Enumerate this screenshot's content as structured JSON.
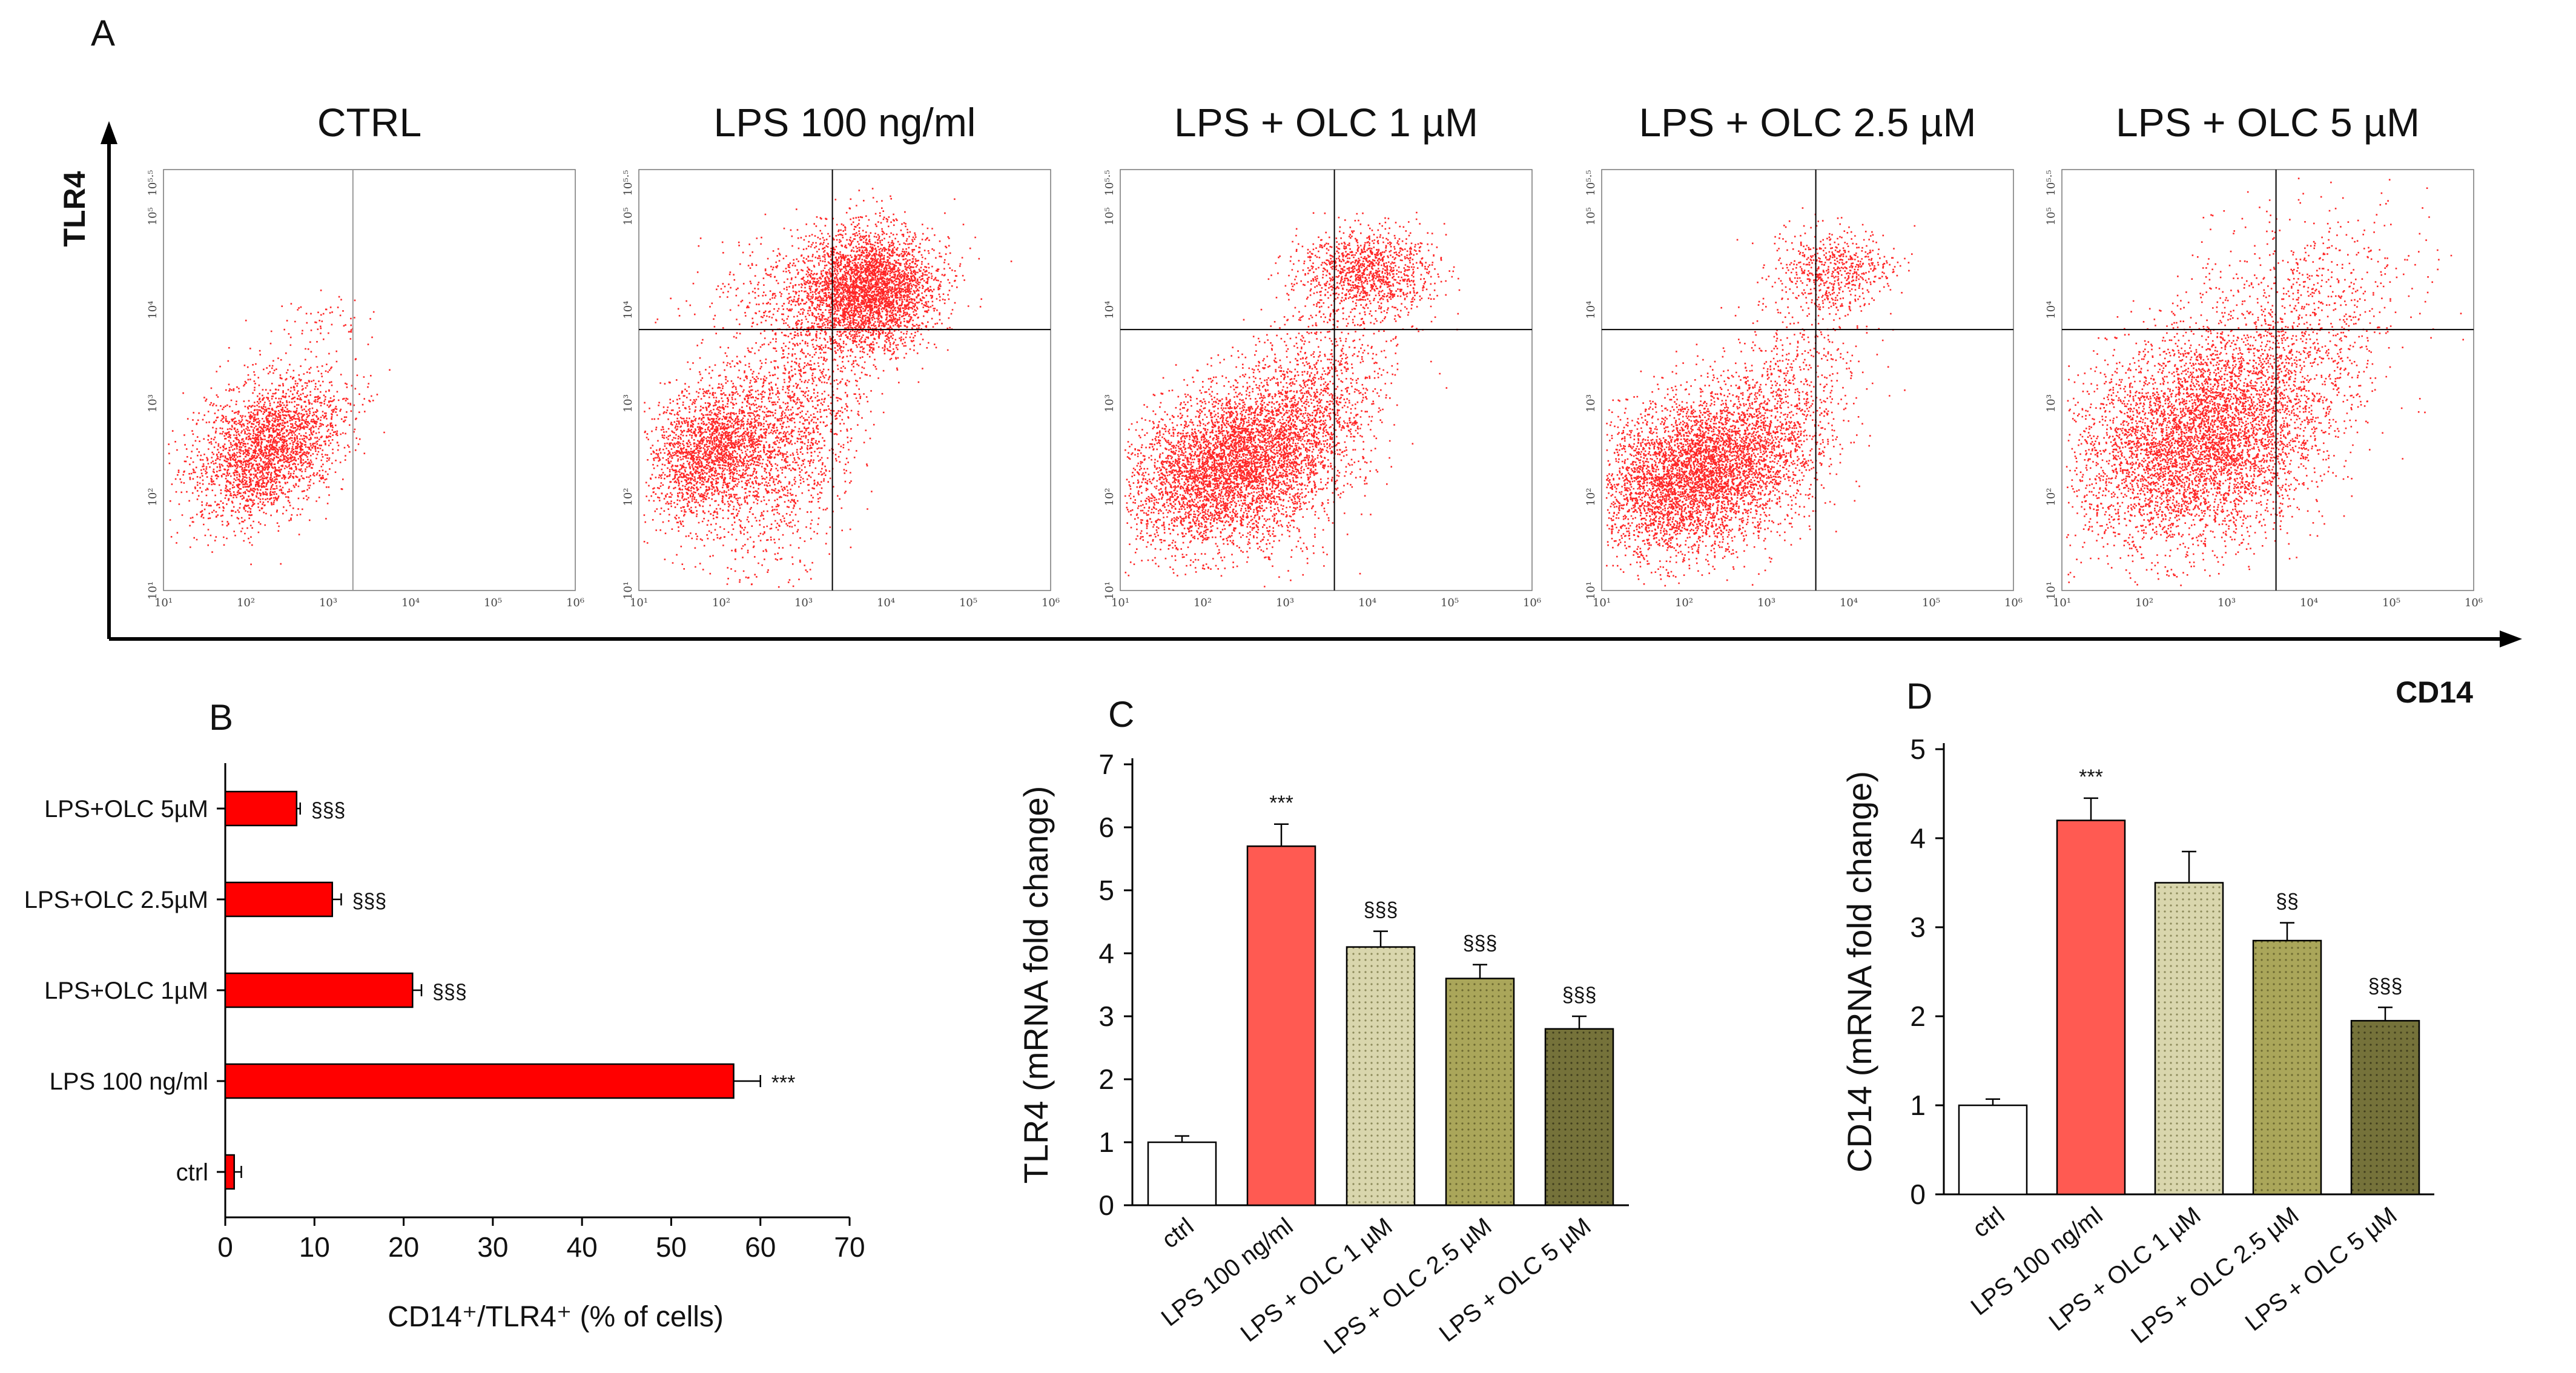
{
  "colors": {
    "dots": "#ff0000",
    "bar_red": "#ff0000",
    "bar_lps": "#ff5a52",
    "bar_olc1": "#cfcc9d",
    "bar_olc25": "#a5a155",
    "bar_olc5": "#6e6b35",
    "bar_ctrl": "#ffffff"
  },
  "panel_a": {
    "letter": "A",
    "y_axis_label": "TLR4",
    "x_axis_label": "CD14",
    "tick_labels": [
      "10¹",
      "10²",
      "10³",
      "10⁴",
      "10⁵",
      "10⁶"
    ],
    "y_top_label": "10⁵·⁵",
    "plots": [
      {
        "title": "CTRL"
      },
      {
        "title": "LPS 100 ng/ml"
      },
      {
        "title": "LPS + OLC 1 µM"
      },
      {
        "title": "LPS + OLC 2.5 µM"
      },
      {
        "title": "LPS + OLC 5 µM"
      }
    ]
  },
  "chart_data": [
    {
      "panel": "B",
      "type": "bar",
      "orientation": "horizontal",
      "title": "",
      "categories": [
        "LPS+OLC 5µM",
        "LPS+OLC 2.5µM",
        "LPS+OLC 1µM",
        "LPS 100 ng/ml",
        "ctrl"
      ],
      "values": [
        8,
        12,
        21,
        57,
        1
      ],
      "errors": [
        0.4,
        1,
        1,
        3,
        0.8
      ],
      "significance": [
        "§§§",
        "§§§",
        "§§§",
        "***",
        ""
      ],
      "xlabel": "CD14⁺/TLR4⁺ (% of cells)",
      "xlim": [
        0,
        70
      ],
      "xticks": [
        0,
        10,
        20,
        30,
        40,
        50,
        60,
        70
      ]
    },
    {
      "panel": "C",
      "type": "bar",
      "title": "",
      "categories": [
        "ctrl",
        "LPS 100 ng/ml",
        "LPS + OLC 1 µM",
        "LPS + OLC 2.5 µM",
        "LPS + OLC 5 µM"
      ],
      "values": [
        1.0,
        5.7,
        4.1,
        3.6,
        2.8
      ],
      "errors": [
        0.1,
        0.35,
        0.25,
        0.22,
        0.2
      ],
      "significance": [
        "",
        "***",
        "§§§",
        "§§§",
        "§§§"
      ],
      "ylabel": "TLR4 (mRNA fold change)",
      "ylim": [
        0,
        7
      ],
      "yticks": [
        0,
        1,
        2,
        3,
        4,
        5,
        6,
        7
      ]
    },
    {
      "panel": "D",
      "type": "bar",
      "title": "",
      "categories": [
        "ctrl",
        "LPS 100 ng/ml",
        "LPS + OLC 1 µM",
        "LPS + OLC 2.5 µM",
        "LPS + OLC 5 µM"
      ],
      "values": [
        1.0,
        4.2,
        3.5,
        2.85,
        1.95
      ],
      "errors": [
        0.07,
        0.25,
        0.35,
        0.2,
        0.15
      ],
      "significance": [
        "",
        "***",
        "",
        "§§",
        "§§§"
      ],
      "ylabel": "CD14 (mRNA fold change)",
      "ylim": [
        0,
        5
      ],
      "yticks": [
        0,
        1,
        2,
        3,
        4,
        5
      ]
    }
  ]
}
